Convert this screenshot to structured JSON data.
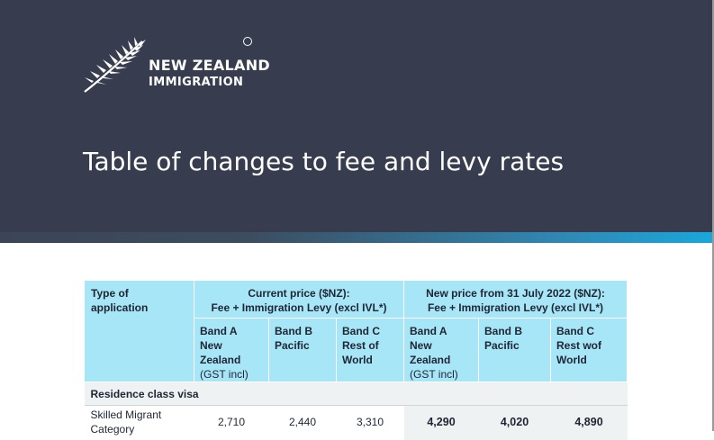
{
  "brand": {
    "name_line1": "NEW ZEALAND",
    "name_line2": "IMMIGRATION",
    "tm": "TM"
  },
  "page": {
    "title": "Table of changes to fee and levy rates"
  },
  "colors": {
    "header_bg": "#373d4e",
    "table_header_bg": "#a6e6f7",
    "section_bg": "#eef2f3",
    "accent": "#1aa7dc"
  },
  "table": {
    "col_type_header": [
      "Type of",
      "application"
    ],
    "current_header": [
      "Current price ($NZ):",
      "Fee + Immigration Levy (excl IVL*)"
    ],
    "new_header": [
      "New price from 31 July 2022 ($NZ):",
      "Fee + Immigration Levy (excl IVL*)"
    ],
    "current_bands": [
      {
        "line1": "Band A",
        "line2": "New Zealand",
        "line3": "(GST incl)"
      },
      {
        "line1": "Band B",
        "line2": "Pacific",
        "line3": ""
      },
      {
        "line1": "Band C",
        "line2": "Rest of",
        "line3": "World"
      }
    ],
    "new_bands": [
      {
        "line1": "Band A",
        "line2": "New Zealand",
        "line3": "(GST incl)"
      },
      {
        "line1": "Band B",
        "line2": "Pacific",
        "line3": ""
      },
      {
        "line1": "Band C",
        "line2": "Rest wof",
        "line3": "World"
      }
    ],
    "section": "Residence class visa",
    "rows": [
      {
        "category": [
          "Skilled Migrant",
          "Category"
        ],
        "current": [
          "2,710",
          "2,440",
          "3,310"
        ],
        "new": [
          "4,290",
          "4,020",
          "4,890"
        ]
      }
    ]
  }
}
